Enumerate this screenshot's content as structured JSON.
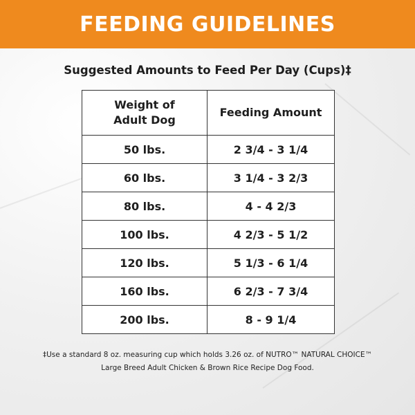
{
  "header": {
    "title": "FEEDING GUIDELINES"
  },
  "subtitle": "Suggested Amounts to Feed Per Day (Cups)‡",
  "table": {
    "columns": [
      "Weight of\nAdult Dog",
      "Feeding Amount"
    ],
    "rows": [
      [
        "50 lbs.",
        "2 3/4 - 3 1/4"
      ],
      [
        "60 lbs.",
        "3 1/4 - 3 2/3"
      ],
      [
        "80 lbs.",
        "4 - 4 2/3"
      ],
      [
        "100 lbs.",
        "4 2/3 - 5 1/2"
      ],
      [
        "120 lbs.",
        "5 1/3 - 6 1/4"
      ],
      [
        "160 lbs.",
        "6 2/3 - 7 3/4"
      ],
      [
        "200 lbs.",
        "8 - 9 1/4"
      ]
    ]
  },
  "footnote": {
    "lines": [
      "‡Use a standard 8 oz. measuring cup which holds 3.26 oz. of NUTRO™ NATURAL CHOICE™",
      "Large Breed Adult Chicken & Brown Rice Recipe Dog Food."
    ]
  }
}
